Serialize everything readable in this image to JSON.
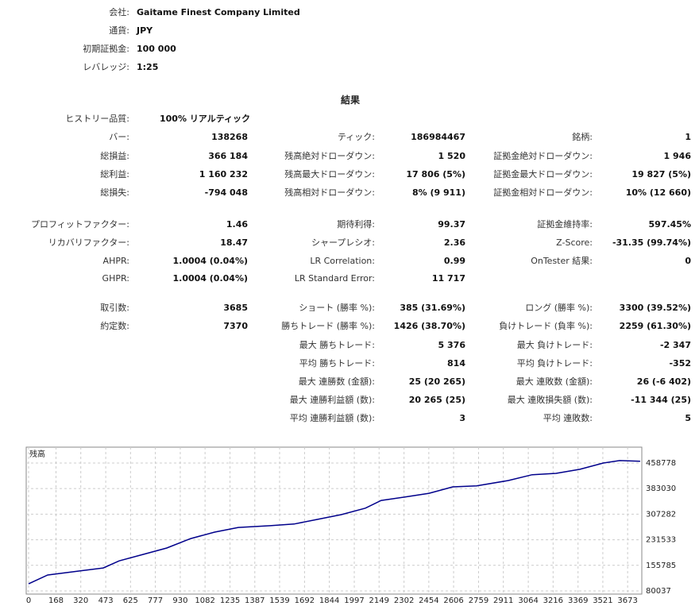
{
  "header": [
    {
      "label": "会社:",
      "value": "Gaitame Finest Company Limited"
    },
    {
      "label": "通貨:",
      "value": "JPY"
    },
    {
      "label": "初期証拠金:",
      "value": "100 000"
    },
    {
      "label": "レバレッジ:",
      "value": "1:25"
    }
  ],
  "results": {
    "title": "結果",
    "history": {
      "label": "ヒストリー品質:",
      "value": "100% リアルティック"
    },
    "rows": [
      [
        {
          "label": "バー:",
          "value": "138268"
        },
        {
          "label": "ティック:",
          "value": "186984467"
        },
        {
          "label": "銘柄:",
          "value": "1"
        }
      ],
      [
        {
          "label": "総損益:",
          "value": "366 184"
        },
        {
          "label": "残高絶対ドローダウン:",
          "value": "1 520"
        },
        {
          "label": "証拠金絶対ドローダウン:",
          "value": "1 946"
        }
      ],
      [
        {
          "label": "総利益:",
          "value": "1 160 232"
        },
        {
          "label": "残高最大ドローダウン:",
          "value": "17 806 (5%)"
        },
        {
          "label": "証拠金最大ドローダウン:",
          "value": "19 827 (5%)"
        }
      ],
      [
        {
          "label": "総損失:",
          "value": "-794 048"
        },
        {
          "label": "残高相対ドローダウン:",
          "value": "8% (9 911)"
        },
        {
          "label": "証拠金相対ドローダウン:",
          "value": "10% (12 660)"
        }
      ],
      [
        {
          "label": "プロフィットファクター:",
          "value": "1.46"
        },
        {
          "label": "期待利得:",
          "value": "99.37"
        },
        {
          "label": "証拠金維持率:",
          "value": "597.45%"
        }
      ],
      [
        {
          "label": "リカバリファクター:",
          "value": "18.47"
        },
        {
          "label": "シャープレシオ:",
          "value": "2.36"
        },
        {
          "label": "Z-Score:",
          "value": "-31.35 (99.74%)"
        }
      ],
      [
        {
          "label": "AHPR:",
          "value": "1.0004 (0.04%)"
        },
        {
          "label": "LR Correlation:",
          "value": "0.99"
        },
        {
          "label": "OnTester 結果:",
          "value": "0"
        }
      ],
      [
        {
          "label": "GHPR:",
          "value": "1.0004 (0.04%)"
        },
        {
          "label": "LR Standard Error:",
          "value": "11 717"
        },
        null
      ],
      [
        {
          "label": "取引数:",
          "value": "3685"
        },
        {
          "label": "ショート (勝率 %):",
          "value": "385 (31.69%)"
        },
        {
          "label": "ロング (勝率 %):",
          "value": "3300 (39.52%)"
        }
      ],
      [
        {
          "label": "約定数:",
          "value": "7370"
        },
        {
          "label": "勝ちトレード (勝率 %):",
          "value": "1426 (38.70%)"
        },
        {
          "label": "負けトレード (負率 %):",
          "value": "2259 (61.30%)"
        }
      ],
      [
        null,
        {
          "label": "最大 勝ちトレード:",
          "value": "5 376"
        },
        {
          "label": "最大 負けトレード:",
          "value": "-2 347"
        }
      ],
      [
        null,
        {
          "label": "平均 勝ちトレード:",
          "value": "814"
        },
        {
          "label": "平均 負けトレード:",
          "value": "-352"
        }
      ],
      [
        null,
        {
          "label": "最大 連勝数 (金額):",
          "value": "25 (20 265)"
        },
        {
          "label": "最大 連敗数 (金額):",
          "value": "26 (-6 402)"
        }
      ],
      [
        null,
        {
          "label": "最大 連勝利益額 (数):",
          "value": "20 265 (25)"
        },
        {
          "label": "最大 連敗損失額 (数):",
          "value": "-11 344 (25)"
        }
      ],
      [
        null,
        {
          "label": "平均 連勝利益額 (数):",
          "value": "3"
        },
        {
          "label": "平均 連敗数:",
          "value": "5"
        }
      ]
    ]
  },
  "chart_data": {
    "type": "line",
    "x": [
      0,
      117,
      312,
      458,
      555,
      701,
      847,
      994,
      1140,
      1286,
      1481,
      1627,
      1773,
      1919,
      2065,
      2162,
      2308,
      2455,
      2601,
      2747,
      2942,
      3088,
      3234,
      3380,
      3526,
      3624,
      3750
    ],
    "series": [
      {
        "name": "残高",
        "color": "#00008b",
        "values": [
          101000,
          127000,
          139000,
          148000,
          169000,
          188000,
          207000,
          235000,
          254000,
          268000,
          273000,
          278000,
          292000,
          306000,
          325000,
          348000,
          358000,
          369000,
          388000,
          391000,
          407000,
          424000,
          428000,
          440000,
          459000,
          466000,
          464000
        ]
      }
    ],
    "xlim": [
      0,
      3760
    ],
    "ylim": [
      70600,
      501000
    ],
    "xticks": [
      0,
      168,
      320,
      473,
      625,
      777,
      930,
      1082,
      1235,
      1387,
      1539,
      1692,
      1844,
      1997,
      2149,
      2302,
      2454,
      2606,
      2759,
      2911,
      3064,
      3216,
      3369,
      3521,
      3673
    ],
    "yticks": [
      80037,
      155785,
      231533,
      307282,
      383030,
      458778
    ],
    "grid": true
  }
}
